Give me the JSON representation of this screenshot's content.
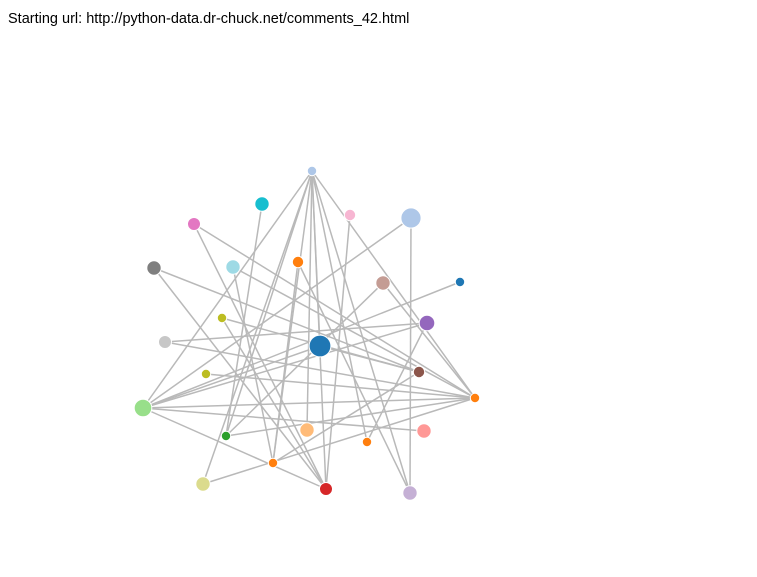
{
  "header": {
    "label": "Starting url:",
    "url": "http://python-data.dr-chuck.net/comments_42.html"
  },
  "graph": {
    "nodes": [
      {
        "id": "n-top",
        "color": "#aec7e8",
        "rank": 1
      },
      {
        "id": "n-cyan",
        "color": "#17becf",
        "rank": 4
      },
      {
        "id": "n-pink",
        "color": "#f7b6d2",
        "rank": 2
      },
      {
        "id": "n-bigblue",
        "color": "#aec7e8",
        "rank": 10
      },
      {
        "id": "n-magenta",
        "color": "#e377c2",
        "rank": 3
      },
      {
        "id": "n-orange-small",
        "color": "#ff7f0e",
        "rank": 2
      },
      {
        "id": "n-gray",
        "color": "#7f7f7f",
        "rank": 4
      },
      {
        "id": "n-lightcyan",
        "color": "#9edae5",
        "rank": 4
      },
      {
        "id": "n-rose",
        "color": "#c49c94",
        "rank": 4
      },
      {
        "id": "n-blue-small",
        "color": "#1f77b4",
        "rank": 1
      },
      {
        "id": "n-olive-small",
        "color": "#bcbd22",
        "rank": 1
      },
      {
        "id": "n-purple",
        "color": "#9467bd",
        "rank": 5
      },
      {
        "id": "n-lightgray",
        "color": "#c7c7c7",
        "rank": 3
      },
      {
        "id": "n-center",
        "color": "#1f77b4",
        "rank": 12
      },
      {
        "id": "n-brown",
        "color": "#8c564b",
        "rank": 2
      },
      {
        "id": "n-olive-2",
        "color": "#bcbd22",
        "rank": 1
      },
      {
        "id": "n-orange-right",
        "color": "#ff7f0e",
        "rank": 1
      },
      {
        "id": "n-lightgreen",
        "color": "#98df8a",
        "rank": 7
      },
      {
        "id": "n-peach",
        "color": "#ffbb78",
        "rank": 4
      },
      {
        "id": "n-salmon",
        "color": "#ff9896",
        "rank": 4
      },
      {
        "id": "n-green",
        "color": "#2ca02c",
        "rank": 1
      },
      {
        "id": "n-orange-3",
        "color": "#ff7f0e",
        "rank": 1
      },
      {
        "id": "n-orange-4",
        "color": "#ff7f0e",
        "rank": 1
      },
      {
        "id": "n-khaki",
        "color": "#dbdb8d",
        "rank": 4
      },
      {
        "id": "n-red",
        "color": "#d62728",
        "rank": 3
      },
      {
        "id": "n-lavender",
        "color": "#c5b0d5",
        "rank": 4
      }
    ],
    "links": [
      [
        "n-top",
        "n-lightgreen"
      ],
      [
        "n-top",
        "n-green"
      ],
      [
        "n-top",
        "n-khaki"
      ],
      [
        "n-top",
        "n-red"
      ],
      [
        "n-top",
        "n-lavender"
      ],
      [
        "n-top",
        "n-orange-right"
      ],
      [
        "n-top",
        "n-peach"
      ],
      [
        "n-top",
        "n-orange-3"
      ],
      [
        "n-top",
        "n-center"
      ],
      [
        "n-top",
        "n-orange-4"
      ],
      [
        "n-cyan",
        "n-green"
      ],
      [
        "n-pink",
        "n-red"
      ],
      [
        "n-bigblue",
        "n-lightgreen"
      ],
      [
        "n-bigblue",
        "n-lavender"
      ],
      [
        "n-magenta",
        "n-orange-right"
      ],
      [
        "n-magenta",
        "n-red"
      ],
      [
        "n-orange-small",
        "n-orange-4"
      ],
      [
        "n-orange-small",
        "n-lavender"
      ],
      [
        "n-gray",
        "n-brown"
      ],
      [
        "n-gray",
        "n-red"
      ],
      [
        "n-lightcyan",
        "n-orange-right"
      ],
      [
        "n-lightcyan",
        "n-orange-4"
      ],
      [
        "n-rose",
        "n-orange-right"
      ],
      [
        "n-rose",
        "n-green"
      ],
      [
        "n-blue-small",
        "n-lightgreen"
      ],
      [
        "n-olive-small",
        "n-brown"
      ],
      [
        "n-olive-small",
        "n-red"
      ],
      [
        "n-purple",
        "n-lightgreen"
      ],
      [
        "n-purple",
        "n-orange-3"
      ],
      [
        "n-lightgray",
        "n-orange-right"
      ],
      [
        "n-lightgray",
        "n-purple"
      ],
      [
        "n-center",
        "n-lightgreen"
      ],
      [
        "n-center",
        "n-brown"
      ],
      [
        "n-olive-2",
        "n-orange-right"
      ],
      [
        "n-lightgreen",
        "n-orange-right"
      ],
      [
        "n-lightgreen",
        "n-salmon"
      ],
      [
        "n-lightgreen",
        "n-red"
      ],
      [
        "n-green",
        "n-orange-right"
      ],
      [
        "n-khaki",
        "n-orange-right"
      ],
      [
        "n-orange-4",
        "n-brown"
      ]
    ]
  }
}
